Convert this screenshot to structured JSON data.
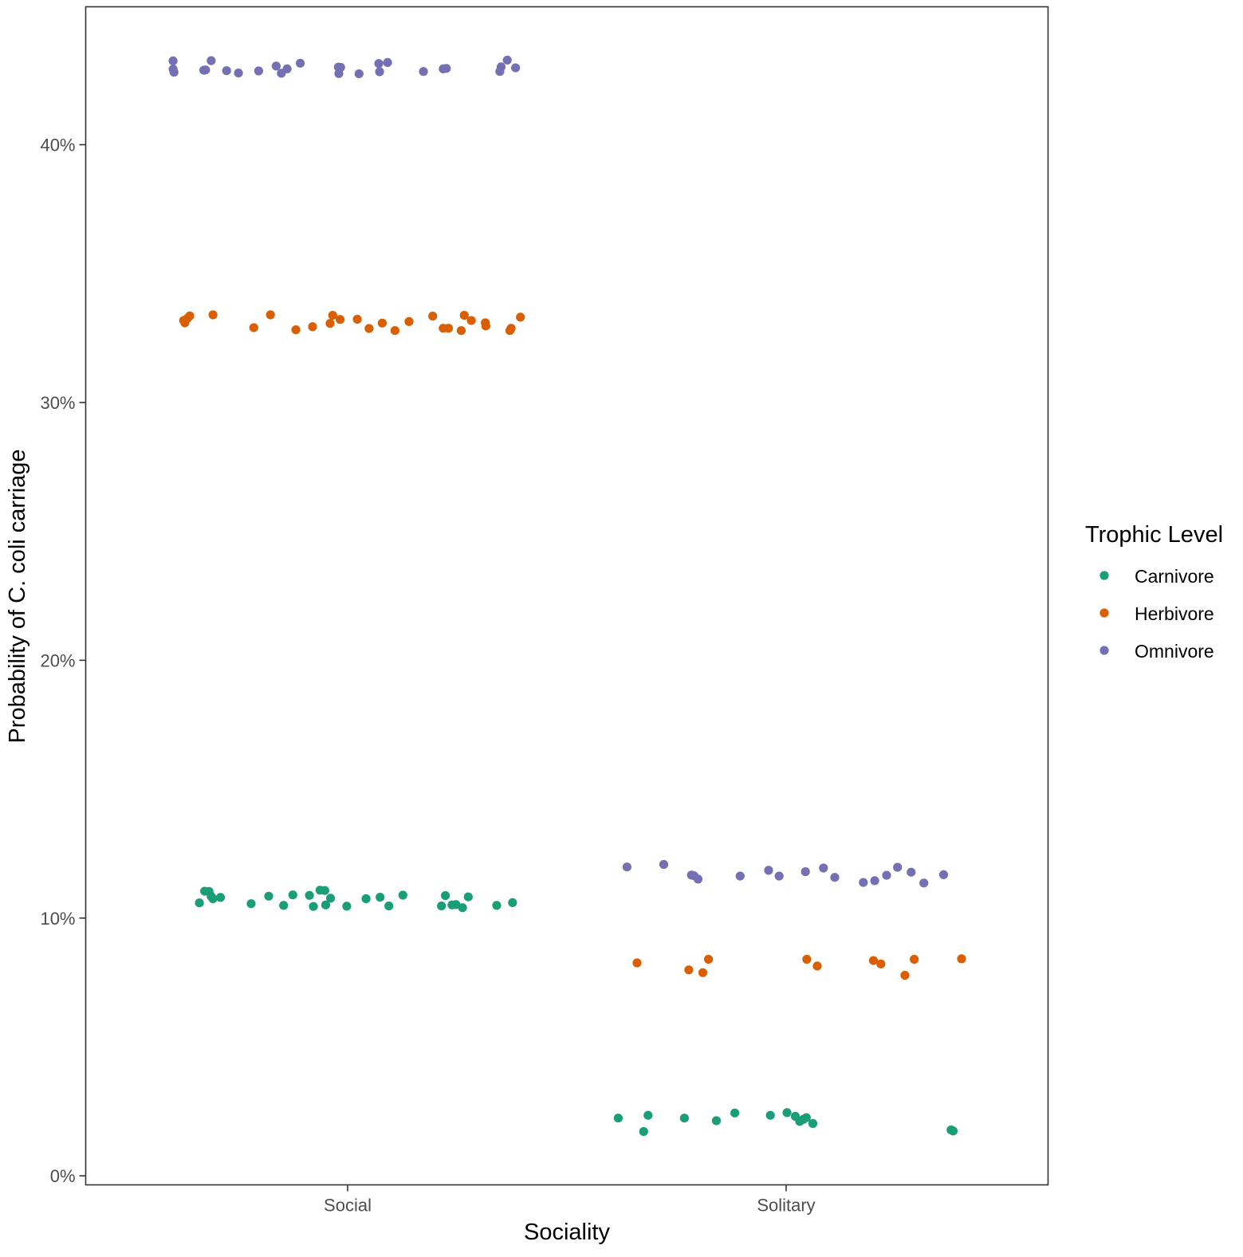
{
  "chart_data": {
    "type": "scatter",
    "xlabel": "Sociality",
    "ylabel": "Probability of C. coli carriage",
    "categories": [
      "Social",
      "Solitary"
    ],
    "ylim": [
      -0.0035,
      0.4535
    ],
    "y_ticks": [
      0,
      0.1,
      0.2,
      0.3,
      0.4
    ],
    "y_tick_labels": [
      "0%",
      "10%",
      "20%",
      "30%",
      "40%"
    ],
    "grid": false,
    "legend": {
      "title": "Trophic Level",
      "position": "right"
    },
    "series": [
      {
        "name": "Carnivore",
        "color": "#1b9e77",
        "points": [
          {
            "x": "Social",
            "y": 0.1059,
            "jitter": -0.338
          },
          {
            "x": "Social",
            "y": 0.1104,
            "jitter": -0.326
          },
          {
            "x": "Social",
            "y": 0.1103,
            "jitter": -0.316
          },
          {
            "x": "Social",
            "y": 0.1084,
            "jitter": -0.311
          },
          {
            "x": "Social",
            "y": 0.1075,
            "jitter": -0.307
          },
          {
            "x": "Social",
            "y": 0.108,
            "jitter": -0.29
          },
          {
            "x": "Social",
            "y": 0.1056,
            "jitter": -0.22
          },
          {
            "x": "Social",
            "y": 0.1085,
            "jitter": -0.18
          },
          {
            "x": "Social",
            "y": 0.1049,
            "jitter": -0.146
          },
          {
            "x": "Social",
            "y": 0.109,
            "jitter": -0.125
          },
          {
            "x": "Social",
            "y": 0.1088,
            "jitter": -0.087
          },
          {
            "x": "Social",
            "y": 0.1045,
            "jitter": -0.078
          },
          {
            "x": "Social",
            "y": 0.1108,
            "jitter": -0.063
          },
          {
            "x": "Social",
            "y": 0.1107,
            "jitter": -0.052
          },
          {
            "x": "Social",
            "y": 0.1051,
            "jitter": -0.05
          },
          {
            "x": "Social",
            "y": 0.1077,
            "jitter": -0.039
          },
          {
            "x": "Social",
            "y": 0.1046,
            "jitter": -0.002
          },
          {
            "x": "Social",
            "y": 0.1075,
            "jitter": 0.042
          },
          {
            "x": "Social",
            "y": 0.1081,
            "jitter": 0.074
          },
          {
            "x": "Social",
            "y": 0.1047,
            "jitter": 0.094
          },
          {
            "x": "Social",
            "y": 0.1089,
            "jitter": 0.126
          },
          {
            "x": "Social",
            "y": 0.1047,
            "jitter": 0.214
          },
          {
            "x": "Social",
            "y": 0.1087,
            "jitter": 0.223
          },
          {
            "x": "Social",
            "y": 0.1051,
            "jitter": 0.238
          },
          {
            "x": "Social",
            "y": 0.1052,
            "jitter": 0.247
          },
          {
            "x": "Social",
            "y": 0.104,
            "jitter": 0.262
          },
          {
            "x": "Social",
            "y": 0.1082,
            "jitter": 0.275
          },
          {
            "x": "Social",
            "y": 0.1049,
            "jitter": 0.34
          },
          {
            "x": "Social",
            "y": 0.106,
            "jitter": 0.376
          },
          {
            "x": "Solitary",
            "y": 0.0224,
            "jitter": -0.383
          },
          {
            "x": "Solitary",
            "y": 0.0172,
            "jitter": -0.325
          },
          {
            "x": "Solitary",
            "y": 0.0235,
            "jitter": -0.315
          },
          {
            "x": "Solitary",
            "y": 0.0224,
            "jitter": -0.232
          },
          {
            "x": "Solitary",
            "y": 0.0214,
            "jitter": -0.159
          },
          {
            "x": "Solitary",
            "y": 0.0244,
            "jitter": -0.117
          },
          {
            "x": "Solitary",
            "y": 0.0235,
            "jitter": -0.036
          },
          {
            "x": "Solitary",
            "y": 0.0245,
            "jitter": 0.002
          },
          {
            "x": "Solitary",
            "y": 0.0231,
            "jitter": 0.021
          },
          {
            "x": "Solitary",
            "y": 0.0211,
            "jitter": 0.031
          },
          {
            "x": "Solitary",
            "y": 0.0219,
            "jitter": 0.039
          },
          {
            "x": "Solitary",
            "y": 0.0226,
            "jitter": 0.046
          },
          {
            "x": "Solitary",
            "y": 0.0203,
            "jitter": 0.061
          },
          {
            "x": "Solitary",
            "y": 0.0178,
            "jitter": 0.376
          },
          {
            "x": "Solitary",
            "y": 0.0174,
            "jitter": 0.381
          }
        ]
      },
      {
        "name": "Herbivore",
        "color": "#d95f02",
        "points": [
          {
            "x": "Social",
            "y": 0.3318,
            "jitter": -0.374
          },
          {
            "x": "Social",
            "y": 0.3309,
            "jitter": -0.371
          },
          {
            "x": "Social",
            "y": 0.3327,
            "jitter": -0.365
          },
          {
            "x": "Social",
            "y": 0.3336,
            "jitter": -0.36
          },
          {
            "x": "Social",
            "y": 0.334,
            "jitter": -0.307
          },
          {
            "x": "Social",
            "y": 0.329,
            "jitter": -0.214
          },
          {
            "x": "Social",
            "y": 0.334,
            "jitter": -0.176
          },
          {
            "x": "Social",
            "y": 0.3282,
            "jitter": -0.118
          },
          {
            "x": "Social",
            "y": 0.3294,
            "jitter": -0.08
          },
          {
            "x": "Social",
            "y": 0.3307,
            "jitter": -0.04
          },
          {
            "x": "Social",
            "y": 0.3338,
            "jitter": -0.034
          },
          {
            "x": "Social",
            "y": 0.3322,
            "jitter": -0.017
          },
          {
            "x": "Social",
            "y": 0.3323,
            "jitter": 0.022
          },
          {
            "x": "Social",
            "y": 0.3287,
            "jitter": 0.049
          },
          {
            "x": "Social",
            "y": 0.3308,
            "jitter": 0.079
          },
          {
            "x": "Social",
            "y": 0.3279,
            "jitter": 0.108
          },
          {
            "x": "Social",
            "y": 0.3314,
            "jitter": 0.14
          },
          {
            "x": "Social",
            "y": 0.3335,
            "jitter": 0.194
          },
          {
            "x": "Social",
            "y": 0.3288,
            "jitter": 0.218
          },
          {
            "x": "Social",
            "y": 0.3288,
            "jitter": 0.23
          },
          {
            "x": "Social",
            "y": 0.3279,
            "jitter": 0.259
          },
          {
            "x": "Social",
            "y": 0.3338,
            "jitter": 0.266
          },
          {
            "x": "Social",
            "y": 0.3318,
            "jitter": 0.282
          },
          {
            "x": "Social",
            "y": 0.3309,
            "jitter": 0.314
          },
          {
            "x": "Social",
            "y": 0.3297,
            "jitter": 0.315
          },
          {
            "x": "Social",
            "y": 0.3279,
            "jitter": 0.37
          },
          {
            "x": "Social",
            "y": 0.3288,
            "jitter": 0.373
          },
          {
            "x": "Social",
            "y": 0.3331,
            "jitter": 0.394
          },
          {
            "x": "Solitary",
            "y": 0.0826,
            "jitter": -0.34
          },
          {
            "x": "Solitary",
            "y": 0.0799,
            "jitter": -0.222
          },
          {
            "x": "Solitary",
            "y": 0.0788,
            "jitter": -0.19
          },
          {
            "x": "Solitary",
            "y": 0.084,
            "jitter": -0.177
          },
          {
            "x": "Solitary",
            "y": 0.084,
            "jitter": 0.047
          },
          {
            "x": "Solitary",
            "y": 0.0814,
            "jitter": 0.071
          },
          {
            "x": "Solitary",
            "y": 0.0835,
            "jitter": 0.199
          },
          {
            "x": "Solitary",
            "y": 0.0822,
            "jitter": 0.216
          },
          {
            "x": "Solitary",
            "y": 0.0778,
            "jitter": 0.271
          },
          {
            "x": "Solitary",
            "y": 0.084,
            "jitter": 0.292
          },
          {
            "x": "Solitary",
            "y": 0.0842,
            "jitter": 0.4
          }
        ]
      },
      {
        "name": "Omnivore",
        "color": "#7570b3",
        "points": [
          {
            "x": "Social",
            "y": 0.4325,
            "jitter": -0.398
          },
          {
            "x": "Social",
            "y": 0.4293,
            "jitter": -0.398
          },
          {
            "x": "Social",
            "y": 0.4281,
            "jitter": -0.396
          },
          {
            "x": "Social",
            "y": 0.4289,
            "jitter": -0.328
          },
          {
            "x": "Social",
            "y": 0.429,
            "jitter": -0.324
          },
          {
            "x": "Social",
            "y": 0.4326,
            "jitter": -0.311
          },
          {
            "x": "Social",
            "y": 0.4287,
            "jitter": -0.276
          },
          {
            "x": "Social",
            "y": 0.4278,
            "jitter": -0.249
          },
          {
            "x": "Social",
            "y": 0.4286,
            "jitter": -0.203
          },
          {
            "x": "Social",
            "y": 0.4305,
            "jitter": -0.163
          },
          {
            "x": "Social",
            "y": 0.4277,
            "jitter": -0.151
          },
          {
            "x": "Social",
            "y": 0.4294,
            "jitter": -0.138
          },
          {
            "x": "Social",
            "y": 0.4316,
            "jitter": -0.108
          },
          {
            "x": "Social",
            "y": 0.4301,
            "jitter": -0.021
          },
          {
            "x": "Social",
            "y": 0.4276,
            "jitter": -0.02
          },
          {
            "x": "Social",
            "y": 0.43,
            "jitter": -0.016
          },
          {
            "x": "Social",
            "y": 0.4275,
            "jitter": 0.026
          },
          {
            "x": "Social",
            "y": 0.4315,
            "jitter": 0.071
          },
          {
            "x": "Social",
            "y": 0.4283,
            "jitter": 0.073
          },
          {
            "x": "Social",
            "y": 0.4319,
            "jitter": 0.091
          },
          {
            "x": "Social",
            "y": 0.4284,
            "jitter": 0.173
          },
          {
            "x": "Social",
            "y": 0.4294,
            "jitter": 0.218
          },
          {
            "x": "Social",
            "y": 0.4296,
            "jitter": 0.225
          },
          {
            "x": "Social",
            "y": 0.4284,
            "jitter": 0.347
          },
          {
            "x": "Social",
            "y": 0.4302,
            "jitter": 0.35
          },
          {
            "x": "Social",
            "y": 0.4328,
            "jitter": 0.364
          },
          {
            "x": "Social",
            "y": 0.4298,
            "jitter": 0.383
          },
          {
            "x": "Solitary",
            "y": 0.1198,
            "jitter": -0.363
          },
          {
            "x": "Solitary",
            "y": 0.1208,
            "jitter": -0.279
          },
          {
            "x": "Solitary",
            "y": 0.1167,
            "jitter": -0.216
          },
          {
            "x": "Solitary",
            "y": 0.1164,
            "jitter": -0.21
          },
          {
            "x": "Solitary",
            "y": 0.1151,
            "jitter": -0.201
          },
          {
            "x": "Solitary",
            "y": 0.1163,
            "jitter": -0.105
          },
          {
            "x": "Solitary",
            "y": 0.1185,
            "jitter": -0.04
          },
          {
            "x": "Solitary",
            "y": 0.1163,
            "jitter": -0.016
          },
          {
            "x": "Solitary",
            "y": 0.118,
            "jitter": 0.044
          },
          {
            "x": "Solitary",
            "y": 0.1194,
            "jitter": 0.085
          },
          {
            "x": "Solitary",
            "y": 0.1158,
            "jitter": 0.111
          },
          {
            "x": "Solitary",
            "y": 0.1138,
            "jitter": 0.176
          },
          {
            "x": "Solitary",
            "y": 0.1145,
            "jitter": 0.202
          },
          {
            "x": "Solitary",
            "y": 0.1166,
            "jitter": 0.229
          },
          {
            "x": "Solitary",
            "y": 0.1197,
            "jitter": 0.254
          },
          {
            "x": "Solitary",
            "y": 0.1178,
            "jitter": 0.285
          },
          {
            "x": "Solitary",
            "y": 0.1136,
            "jitter": 0.314
          },
          {
            "x": "Solitary",
            "y": 0.1168,
            "jitter": 0.359
          }
        ]
      }
    ]
  }
}
